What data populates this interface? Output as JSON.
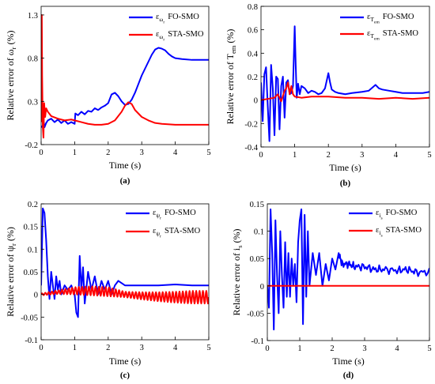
{
  "chart_data": [
    {
      "type": "line",
      "caption": "(a)",
      "ylabel": "Relative error of ω_r (%)",
      "ylabel_parts": {
        "pre": "Relative error of ",
        "var": "ω",
        "sub": "r",
        "post": " (%)"
      },
      "xlabel": "Time (s)",
      "xlim": [
        0,
        5
      ],
      "ylim": [
        -0.2,
        1.4
      ],
      "xticks": [
        "0",
        "1",
        "2",
        "3",
        "4",
        "5"
      ],
      "yticks": [
        "1.3",
        "0.8",
        "0.3",
        "-0.2"
      ],
      "ytick_values": [
        1.3,
        0.8,
        0.3,
        -0.2
      ],
      "grid": false,
      "legend_position": "top-right",
      "series": [
        {
          "name": "ε_ωr FO-SMO",
          "legend_sym": "ε",
          "legend_sub": "ω",
          "legend_subsub": "r",
          "legend_text": "FO-SMO",
          "color": "#0000ff",
          "x": [
            0,
            0.05,
            0.08,
            0.1,
            0.15,
            0.2,
            0.3,
            0.4,
            0.5,
            0.6,
            0.7,
            0.8,
            0.9,
            1.0,
            1.02,
            1.1,
            1.2,
            1.3,
            1.4,
            1.5,
            1.6,
            1.7,
            1.8,
            1.9,
            2.0,
            2.1,
            2.2,
            2.3,
            2.4,
            2.5,
            2.6,
            2.7,
            2.8,
            2.9,
            3.0,
            3.1,
            3.2,
            3.3,
            3.4,
            3.5,
            3.6,
            3.7,
            3.8,
            3.9,
            4.0,
            4.2,
            4.5,
            4.8,
            5.0
          ],
          "y": [
            0,
            0.02,
            0.06,
            0.0,
            0.05,
            0.08,
            0.1,
            0.06,
            0.09,
            0.05,
            0.08,
            0.04,
            0.06,
            0.04,
            0.16,
            0.14,
            0.18,
            0.15,
            0.19,
            0.18,
            0.22,
            0.2,
            0.23,
            0.25,
            0.28,
            0.38,
            0.4,
            0.36,
            0.3,
            0.26,
            0.27,
            0.32,
            0.4,
            0.5,
            0.6,
            0.68,
            0.76,
            0.84,
            0.9,
            0.92,
            0.91,
            0.89,
            0.85,
            0.82,
            0.8,
            0.79,
            0.78,
            0.78,
            0.78
          ]
        },
        {
          "name": "ε_ωr STA-SMO",
          "legend_sym": "ε",
          "legend_sub": "ω",
          "legend_subsub": "r",
          "legend_text": "STA-SMO",
          "color": "#ff0000",
          "x": [
            0,
            0.02,
            0.03,
            0.05,
            0.07,
            0.09,
            0.12,
            0.15,
            0.2,
            0.3,
            0.5,
            0.7,
            0.9,
            1.0,
            1.2,
            1.4,
            1.6,
            1.8,
            2.0,
            2.2,
            2.4,
            2.5,
            2.6,
            2.7,
            2.8,
            3.0,
            3.2,
            3.4,
            3.6,
            4.0,
            4.5,
            5.0
          ],
          "y": [
            0.06,
            1.3,
            0.6,
            0.0,
            -0.12,
            0.28,
            0.12,
            0.22,
            0.18,
            0.13,
            0.1,
            0.08,
            0.09,
            0.08,
            0.06,
            0.04,
            0.03,
            0.03,
            0.04,
            0.08,
            0.18,
            0.25,
            0.29,
            0.27,
            0.2,
            0.12,
            0.08,
            0.05,
            0.04,
            0.03,
            0.03,
            0.03
          ]
        }
      ]
    },
    {
      "type": "line",
      "caption": "(b)",
      "ylabel": "Relative error of T_em (%)",
      "ylabel_parts": {
        "pre": "Relative error of ",
        "var": "T",
        "sub": "em",
        "post": " (%)"
      },
      "xlabel": "Time (s)",
      "xlim": [
        0,
        5
      ],
      "ylim": [
        -0.4,
        0.8
      ],
      "xticks": [
        "0",
        "1",
        "2",
        "3",
        "4",
        "5"
      ],
      "yticks": [
        "0.8",
        "0.6",
        "0.4",
        "0.2",
        "0",
        "-0.2",
        "-0.4"
      ],
      "ytick_values": [
        0.8,
        0.6,
        0.4,
        0.2,
        0,
        -0.2,
        -0.4
      ],
      "grid": false,
      "legend_position": "top-right",
      "series": [
        {
          "name": "ε_Tem FO-SMO",
          "legend_sym": "ε",
          "legend_sub": "T",
          "legend_subsub": "em",
          "legend_text": "FO-SMO",
          "color": "#0000ff",
          "x": [
            0,
            0.05,
            0.1,
            0.15,
            0.2,
            0.25,
            0.3,
            0.35,
            0.4,
            0.45,
            0.5,
            0.55,
            0.6,
            0.65,
            0.7,
            0.75,
            0.8,
            0.85,
            0.9,
            0.95,
            1.0,
            1.03,
            1.06,
            1.1,
            1.15,
            1.2,
            1.3,
            1.4,
            1.5,
            1.6,
            1.7,
            1.8,
            1.9,
            2.0,
            2.05,
            2.1,
            2.2,
            2.3,
            2.5,
            2.7,
            3.0,
            3.2,
            3.4,
            3.5,
            3.6,
            3.8,
            4.0,
            4.2,
            4.5,
            4.8,
            5.0
          ],
          "y": [
            0.15,
            -0.18,
            0.22,
            0.28,
            -0.05,
            -0.35,
            0.3,
            0.1,
            -0.3,
            0.2,
            0.18,
            -0.25,
            0.12,
            0.2,
            -0.15,
            0.15,
            0.17,
            0.05,
            0.06,
            0.12,
            0.63,
            0.3,
            0.02,
            0.14,
            0.05,
            0.12,
            0.1,
            0.06,
            0.08,
            0.07,
            0.05,
            0.06,
            0.1,
            0.23,
            0.15,
            0.09,
            0.07,
            0.06,
            0.05,
            0.06,
            0.07,
            0.08,
            0.13,
            0.1,
            0.09,
            0.08,
            0.07,
            0.06,
            0.06,
            0.06,
            0.07
          ]
        },
        {
          "name": "ε_Tem STA-SMO",
          "legend_sym": "ε",
          "legend_sub": "T",
          "legend_subsub": "em",
          "legend_text": "STA-SMO",
          "color": "#ff0000",
          "x": [
            0,
            0.2,
            0.4,
            0.5,
            0.6,
            0.7,
            0.75,
            0.8,
            0.85,
            0.9,
            0.95,
            1.0,
            1.2,
            1.5,
            2.0,
            2.5,
            3.0,
            3.5,
            4.0,
            4.5,
            5.0
          ],
          "y": [
            0,
            0.01,
            0.02,
            0.05,
            -0.01,
            0.08,
            0.1,
            0.15,
            0.05,
            0.12,
            0.05,
            0.03,
            0.02,
            0.03,
            0.03,
            0.02,
            0.02,
            0.01,
            0.02,
            0.01,
            0.02
          ]
        }
      ]
    },
    {
      "type": "line",
      "caption": "(c)",
      "ylabel": "Relative error of ψ_r (%)",
      "ylabel_parts": {
        "pre": "Relative error of ",
        "var": "ψ",
        "sub": "r",
        "post": " (%)"
      },
      "xlabel": "Time (s)",
      "xlim": [
        0,
        5
      ],
      "ylim": [
        -0.1,
        0.2
      ],
      "xticks": [
        "0",
        "1",
        "2",
        "3",
        "4",
        "5"
      ],
      "yticks": [
        "0.2",
        "0.15",
        "0.1",
        "0.05",
        "0",
        "-0.05",
        "-0.1"
      ],
      "ytick_values": [
        0.2,
        0.15,
        0.1,
        0.05,
        0,
        -0.05,
        -0.1
      ],
      "grid": false,
      "legend_position": "top-right",
      "series": [
        {
          "name": "ε_ψr FO-SMO",
          "legend_sym": "ε",
          "legend_sub": "ψ",
          "legend_subsub": "r",
          "legend_text": "FO-SMO",
          "color": "#0000ff",
          "x": [
            0,
            0.05,
            0.1,
            0.15,
            0.2,
            0.25,
            0.3,
            0.35,
            0.4,
            0.45,
            0.5,
            0.55,
            0.6,
            0.7,
            0.8,
            0.9,
            1.0,
            1.05,
            1.1,
            1.15,
            1.2,
            1.25,
            1.3,
            1.4,
            1.5,
            1.6,
            1.7,
            1.8,
            1.9,
            2.0,
            2.1,
            2.2,
            2.3,
            2.5,
            2.7,
            3.0,
            3.5,
            4.0,
            4.5,
            5.0
          ],
          "y": [
            0.02,
            0.19,
            0.18,
            0.12,
            0.04,
            -0.01,
            0.05,
            0.02,
            -0.01,
            0.04,
            0.01,
            0.03,
            0.0,
            0.02,
            0.01,
            0.02,
            0.0,
            -0.04,
            -0.05,
            0.085,
            0.01,
            0.06,
            -0.02,
            0.05,
            0.01,
            0.04,
            0.0,
            0.03,
            0.01,
            0.03,
            0.0,
            0.02,
            0.03,
            0.02,
            0.02,
            0.02,
            0.02,
            0.022,
            0.02,
            0.02
          ]
        },
        {
          "name": "ε_ψr STA-SMO",
          "legend_sym": "ε",
          "legend_sub": "ψ",
          "legend_subsub": "r",
          "legend_text": "STA-SMO",
          "color": "#ff0000",
          "x": [
            0,
            0.5,
            1.0,
            1.5,
            2.0,
            2.5,
            3.0,
            3.5,
            4.0,
            4.5,
            5.0
          ],
          "y": [
            0.0,
            0.005,
            0.008,
            0.008,
            0.006,
            0.0,
            -0.003,
            -0.005,
            -0.006,
            -0.006,
            -0.006
          ],
          "oscillation_amplitude": [
            0.002,
            0.004,
            0.008,
            0.01,
            0.01,
            0.006,
            0.008,
            0.01,
            0.012,
            0.014,
            0.014
          ]
        }
      ]
    },
    {
      "type": "line",
      "caption": "(d)",
      "ylabel": "Relative error of i_s (%)",
      "ylabel_parts": {
        "pre": "Relative error of ",
        "var": "i",
        "sub": "s",
        "post": " (%)"
      },
      "xlabel": "Time (s)",
      "xlim": [
        0,
        5
      ],
      "ylim": [
        -0.1,
        0.15
      ],
      "xticks": [
        "0",
        "1",
        "2",
        "3",
        "4",
        "5"
      ],
      "yticks": [
        "0.15",
        "0.1",
        "0.05",
        "0",
        "-0.05",
        "-0.1"
      ],
      "ytick_values": [
        0.15,
        0.1,
        0.05,
        0,
        -0.05,
        -0.1
      ],
      "grid": false,
      "legend_position": "top-right",
      "series": [
        {
          "name": "ε_is FO-SMO",
          "legend_sym": "ε",
          "legend_sub": "i",
          "legend_subsub": "s",
          "legend_text": "FO-SMO",
          "color": "#0000ff",
          "x": [
            0,
            0.05,
            0.1,
            0.15,
            0.2,
            0.25,
            0.3,
            0.35,
            0.4,
            0.45,
            0.5,
            0.55,
            0.6,
            0.65,
            0.7,
            0.75,
            0.8,
            0.85,
            0.9,
            0.95,
            1.0,
            1.05,
            1.1,
            1.15,
            1.2,
            1.25,
            1.3,
            1.4,
            1.5,
            1.6,
            1.7,
            1.8,
            1.9,
            2.0,
            2.1,
            2.2,
            2.3,
            2.5,
            2.7,
            3.0,
            3.3,
            3.6,
            4.0,
            4.3,
            4.6,
            5.0
          ],
          "y": [
            0.0,
            -0.04,
            0.14,
            0.06,
            -0.08,
            0.12,
            0.02,
            -0.05,
            0.1,
            0.02,
            -0.04,
            0.08,
            -0.02,
            0.06,
            -0.02,
            0.05,
            0.0,
            0.04,
            -0.03,
            0.08,
            0.12,
            0.14,
            -0.07,
            0.13,
            -0.02,
            0.1,
            0.0,
            0.06,
            0.02,
            0.06,
            0.0,
            0.04,
            0.01,
            0.05,
            0.03,
            0.06,
            0.04,
            0.04,
            0.035,
            0.035,
            0.03,
            0.03,
            0.028,
            0.03,
            0.025,
            0.025
          ],
          "noise_amplitude": 0.008
        },
        {
          "name": "ε_is STA-SMO",
          "legend_sym": "ε",
          "legend_sub": "i",
          "legend_subsub": "s",
          "legend_text": "STA-SMO",
          "color": "#ff0000",
          "x": [
            0,
            5
          ],
          "y": [
            0,
            0
          ]
        }
      ]
    }
  ]
}
